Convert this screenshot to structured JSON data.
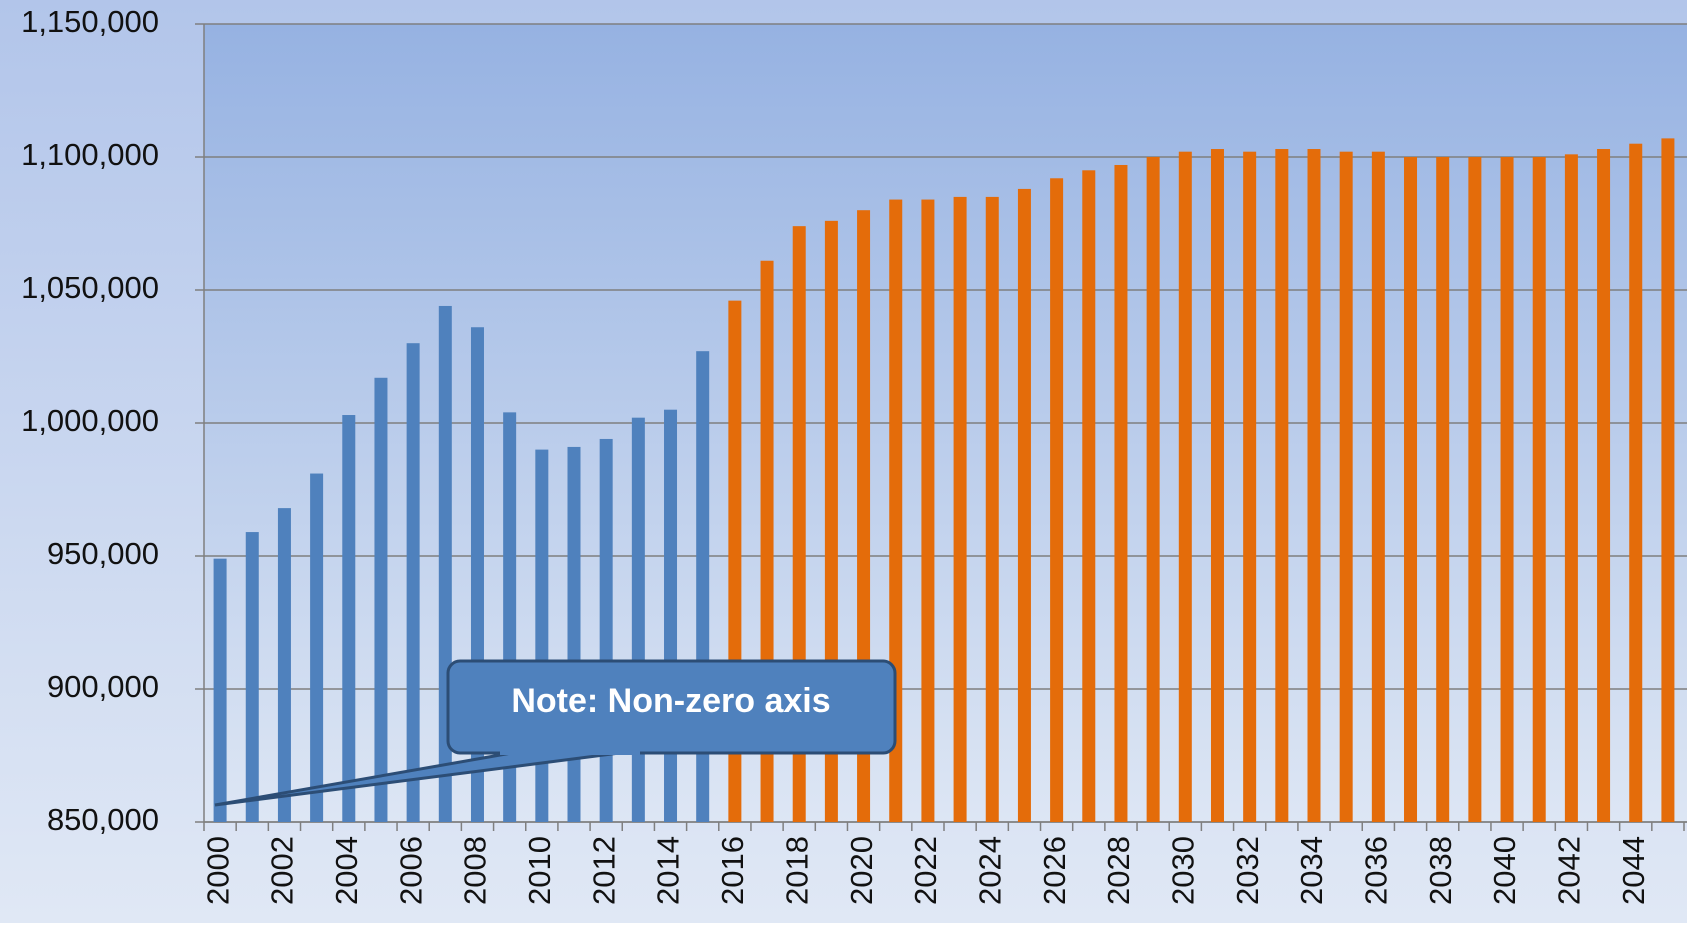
{
  "chart_data": {
    "type": "bar",
    "categories": [
      "2000",
      null,
      "2002",
      null,
      "2004",
      null,
      "2006",
      null,
      "2008",
      null,
      "2010",
      null,
      "2012",
      null,
      "2014",
      null,
      "2016",
      null,
      "2018",
      null,
      "2020",
      null,
      "2022",
      null,
      "2024",
      null,
      "2026",
      null,
      "2028",
      null,
      "2030",
      null,
      "2032",
      null,
      "2034",
      null,
      "2036",
      null,
      "2038",
      null,
      "2040",
      null,
      "2042",
      null,
      "2044",
      null
    ],
    "series": [
      {
        "color": "#4f81bd",
        "values": [
          949000,
          959000,
          968000,
          981000,
          1003000,
          1017000,
          1030000,
          1044000,
          1036000,
          1004000,
          990000,
          991000,
          994000,
          1002000,
          1005000,
          1027000,
          null,
          null,
          null,
          null,
          null,
          null,
          null,
          null,
          null,
          null,
          null,
          null,
          null,
          null,
          null,
          null,
          null,
          null,
          null,
          null,
          null,
          null,
          null,
          null,
          null,
          null,
          null,
          null,
          null,
          null
        ]
      },
      {
        "color": "#e46c0a",
        "values": [
          null,
          null,
          null,
          null,
          null,
          null,
          null,
          null,
          null,
          null,
          null,
          null,
          null,
          null,
          null,
          null,
          1046000,
          1061000,
          1074000,
          1076000,
          1080000,
          1084000,
          1084000,
          1085000,
          1085000,
          1088000,
          1092000,
          1095000,
          1097000,
          1100000,
          1102000,
          1103000,
          1102000,
          1103000,
          1103000,
          1102000,
          1102000,
          1100000,
          1100000,
          1100000,
          1100000,
          1100000,
          1101000,
          1103000,
          1105000,
          1107000
        ]
      }
    ],
    "ylim": [
      850000,
      1150000
    ],
    "yticks": [
      {
        "value": 850000,
        "label": "850,000"
      },
      {
        "value": 900000,
        "label": "900,000"
      },
      {
        "value": 950000,
        "label": "950,000"
      },
      {
        "value": 1000000,
        "label": "1,000,000"
      },
      {
        "value": 1050000,
        "label": "1,050,000"
      },
      {
        "value": 1100000,
        "label": "1,100,000"
      },
      {
        "value": 1150000,
        "label": "1,150,000"
      }
    ],
    "grid": true,
    "annotation": "Note: Non-zero axis"
  }
}
